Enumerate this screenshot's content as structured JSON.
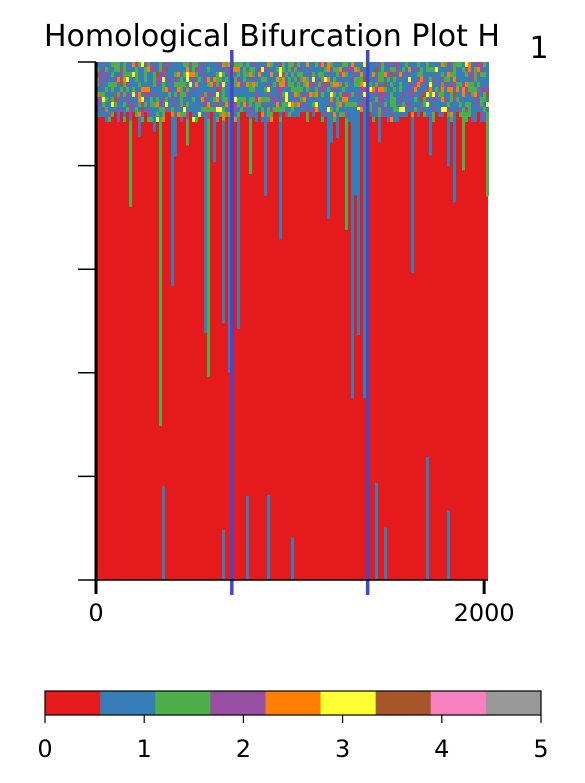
{
  "chart_data": {
    "type": "heatmap",
    "title": "Homological Bifurcation Plot H",
    "title_subscript": "1",
    "xlabel": "",
    "ylabel": "",
    "x_ticks": [
      0,
      2000
    ],
    "x_tick_labels": [
      "0",
      "2000"
    ],
    "xlim": [
      0,
      2020
    ],
    "y_tick_count": 6,
    "vertical_markers": {
      "x": [
        700,
        1400
      ],
      "color": "#4646c8"
    },
    "dominant_value": 0,
    "colorbar": {
      "ticks": [
        0,
        1,
        2,
        3,
        4,
        5
      ],
      "tick_labels": [
        "0",
        "1",
        "2",
        "3",
        "4",
        "5"
      ],
      "range": [
        0,
        5
      ],
      "colors": [
        "#e41a1c",
        "#377eb8",
        "#4daf4a",
        "#984ea3",
        "#ff7f00",
        "#ffff33",
        "#a65628",
        "#f781bf",
        "#999999"
      ]
    },
    "upper_band_texture_colors": [
      "#377eb8",
      "#4daf4a",
      "#984ea3",
      "#ff7f00",
      "#ffff33",
      "#a65628"
    ],
    "lower_streak_colors": [
      "#377eb8",
      "#4daf4a"
    ]
  }
}
